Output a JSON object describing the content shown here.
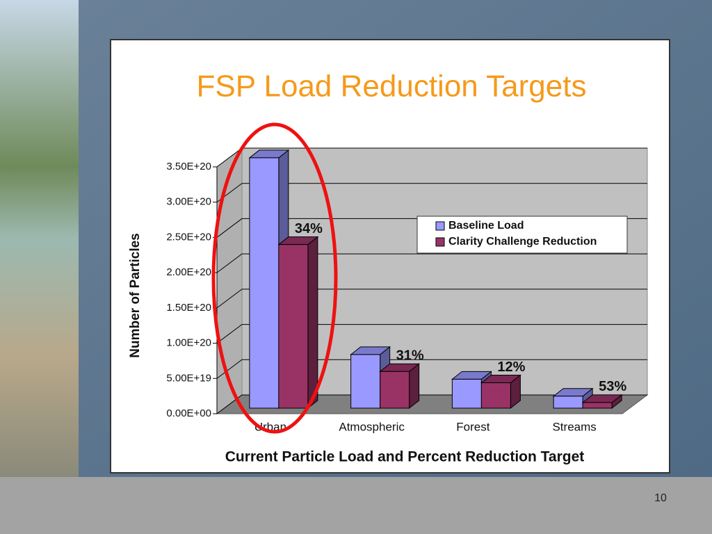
{
  "chart_data": {
    "type": "bar3d",
    "title": "FSP Load Reduction Targets",
    "x_label": "Current Particle Load and Percent Reduction Target",
    "y_label": "Number of Particles",
    "categories": [
      "Urban",
      "Atmospheric",
      "Forest",
      "Streams"
    ],
    "series": [
      {
        "name": "Baseline Load",
        "color": "#9999ff",
        "values": [
          3.55e+20,
          7.6e+19,
          4.1e+19,
          1.7e+19
        ]
      },
      {
        "name": "Clarity Challenge Reduction",
        "color": "#993366",
        "values": [
          2.32e+20,
          5.2e+19,
          3.6e+19,
          8e+18
        ]
      }
    ],
    "annotations": [
      "34%",
      "31%",
      "12%",
      "53%"
    ],
    "ylim": [
      0,
      3.5e+20
    ],
    "yticks": [
      {
        "value": 0,
        "label": "0.00E+00"
      },
      {
        "value": 5e+19,
        "label": "5.00E+19"
      },
      {
        "value": 1e+20,
        "label": "1.00E+20"
      },
      {
        "value": 1.5e+20,
        "label": "1.50E+20"
      },
      {
        "value": 2e+20,
        "label": "2.00E+20"
      },
      {
        "value": 2.5e+20,
        "label": "2.50E+20"
      },
      {
        "value": 3e+20,
        "label": "3.00E+20"
      },
      {
        "value": 3.5e+20,
        "label": "3.50E+20"
      }
    ],
    "grid": true,
    "legend": "upper right"
  },
  "page_number": "10"
}
